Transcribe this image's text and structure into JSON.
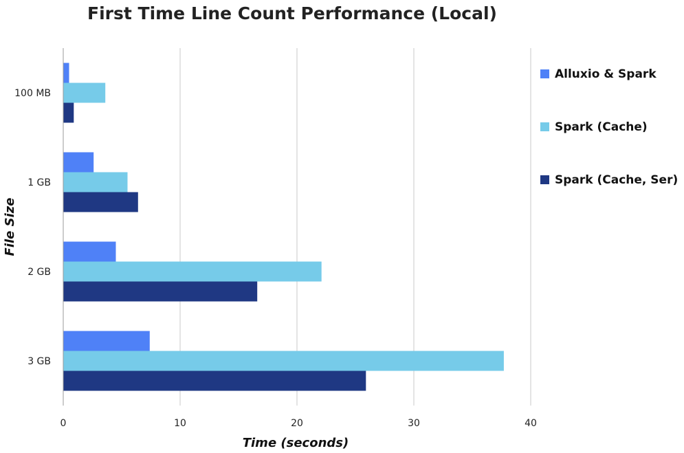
{
  "chart_data": {
    "type": "bar",
    "orientation": "horizontal",
    "title": "First Time Line Count Performance (Local)",
    "xlabel": "Time (seconds)",
    "ylabel": "File Size",
    "categories": [
      "100 MB",
      "1 GB",
      "2 GB",
      "3 GB"
    ],
    "xlim": [
      0,
      40
    ],
    "xticks": [
      0,
      10,
      20,
      30,
      40
    ],
    "grid": true,
    "legend_position": "right",
    "series": [
      {
        "name": "Alluxio & Spark",
        "color": "#4f81f7",
        "values": [
          0.5,
          2.6,
          4.5,
          7.4
        ]
      },
      {
        "name": "Spark (Cache)",
        "color": "#76cbe9",
        "values": [
          3.6,
          5.5,
          22.1,
          37.7
        ]
      },
      {
        "name": "Spark (Cache, Ser)",
        "color": "#1f3883",
        "values": [
          0.9,
          6.4,
          16.6,
          25.9
        ]
      }
    ]
  }
}
